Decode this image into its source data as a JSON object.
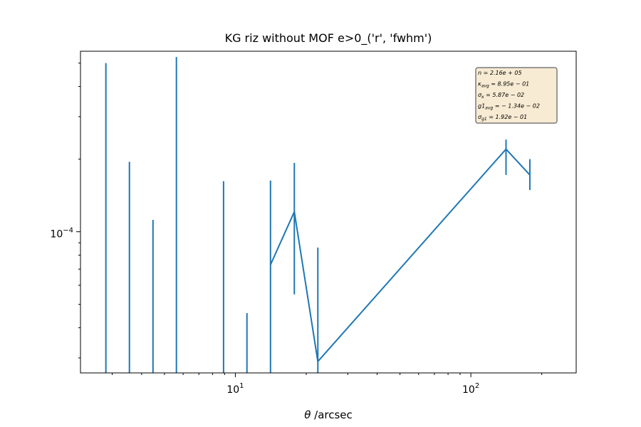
{
  "chart_data": {
    "type": "line",
    "title": "KG riz without MOF e>0_('r', 'fwhm')",
    "xlabel_symbol": "θ",
    "xlabel_unit": " /arcsec",
    "ylabel": "",
    "xscale": "log",
    "yscale": "log",
    "xlim": [
      2.2,
      280
    ],
    "ylim": [
      2.6e-05,
      0.00056
    ],
    "x_tick_labels": [
      {
        "value": 10,
        "base": "10",
        "exp": "1"
      },
      {
        "value": 100,
        "base": "10",
        "exp": "2"
      }
    ],
    "y_tick_labels": [
      {
        "value": 0.0001,
        "base": "10",
        "exp": "−4"
      }
    ],
    "series_color": "#1f77b4",
    "points": [
      {
        "x": 2.82,
        "y": null,
        "err_low": 2.6e-05,
        "err_high": 0.0005
      },
      {
        "x": 3.55,
        "y": null,
        "err_low": 2.6e-05,
        "err_high": 0.000195
      },
      {
        "x": 4.47,
        "y": null,
        "err_low": 2.6e-05,
        "err_high": 0.000112
      },
      {
        "x": 5.62,
        "y": null,
        "err_low": 2.6e-05,
        "err_high": 0.00053
      },
      {
        "x": 8.91,
        "y": null,
        "err_low": 2.6e-05,
        "err_high": 0.000162
      },
      {
        "x": 11.2,
        "y": null,
        "err_low": 2.6e-05,
        "err_high": 4.6e-05
      },
      {
        "x": 14.1,
        "y": 7.3e-05,
        "err_low": 2.6e-05,
        "err_high": 0.000163
      },
      {
        "x": 17.8,
        "y": 0.000121,
        "err_low": 5.5e-05,
        "err_high": 0.000193
      },
      {
        "x": 22.4,
        "y": 2.9e-05,
        "err_low": 2.6e-05,
        "err_high": 8.6e-05
      },
      {
        "x": 141,
        "y": 0.00022,
        "err_low": 0.000172,
        "err_high": 0.000241
      },
      {
        "x": 178,
        "y": 0.000172,
        "err_low": 0.000149,
        "err_high": 0.0002
      }
    ],
    "stats_box": [
      {
        "sym": "n",
        "sub": "",
        "val": " = 2.16e + 05"
      },
      {
        "sym": "κ",
        "sub": "avg",
        "val": " = 8.95e − 01"
      },
      {
        "sym": "σ",
        "sub": "κ",
        "val": " = 5.87e − 02"
      },
      {
        "sym": "g1",
        "sub": "avg",
        "val": " = − 1.34e − 02"
      },
      {
        "sym": "σ",
        "sub": "g1",
        "val": " = 1.92e − 01"
      }
    ]
  }
}
